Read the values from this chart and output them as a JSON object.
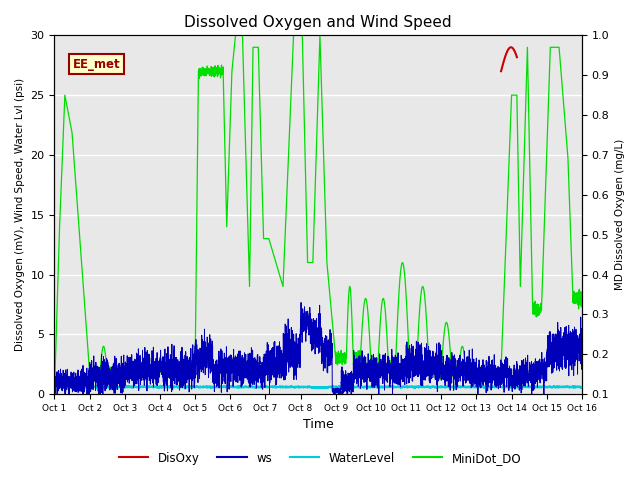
{
  "title": "Dissolved Oxygen and Wind Speed",
  "ylabel_left": "Dissolved Oxygen (mV), Wind Speed, Water Lvl (psi)",
  "ylabel_right": "MD Dissolved Oxygen (mg/L)",
  "xlabel": "Time",
  "ylim_left": [
    0,
    30
  ],
  "ylim_right": [
    0.1,
    1.0
  ],
  "text_label": "EE_met",
  "background_color": "#e8e8e8",
  "plot_bg": "#e8e8e8",
  "colors": {
    "DisOxy": "#cc0000",
    "ws": "#0000bb",
    "WaterLevel": "#00ccdd",
    "MiniDot_DO": "#00dd00"
  },
  "x_tick_labels": [
    "Oct 1",
    "Oct 2",
    "Oct 3",
    "Oct 4",
    "Oct 5",
    "Oct 6",
    "Oct 7",
    "Oct 8",
    "Oct 9",
    "Oct 10",
    "Oct 11",
    "Oct 12",
    "Oct 13",
    "Oct 14",
    "Oct 15",
    "Oct 16"
  ],
  "yticks_left": [
    0,
    5,
    10,
    15,
    20,
    25,
    30
  ],
  "yticks_right": [
    0.1,
    0.2,
    0.3,
    0.4,
    0.5,
    0.6,
    0.7,
    0.8,
    0.9,
    1.0
  ]
}
